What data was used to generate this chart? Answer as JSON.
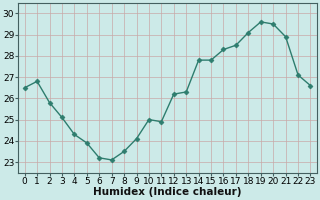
{
  "x": [
    0,
    1,
    2,
    3,
    4,
    5,
    6,
    7,
    8,
    9,
    10,
    11,
    12,
    13,
    14,
    15,
    16,
    17,
    18,
    19,
    20,
    21,
    22,
    23
  ],
  "y": [
    26.5,
    26.8,
    25.8,
    25.1,
    24.3,
    23.9,
    23.2,
    23.1,
    23.5,
    24.1,
    25.0,
    24.9,
    26.2,
    26.3,
    27.8,
    27.8,
    28.3,
    28.5,
    29.1,
    29.6,
    29.5,
    28.9,
    27.1,
    26.6
  ],
  "line_color": "#2e7d6e",
  "marker": "D",
  "marker_size": 2.5,
  "bg_color": "#cceae8",
  "grid_color": "#b8d8d5",
  "xlabel": "Humidex (Indice chaleur)",
  "ylim": [
    22.5,
    30.5
  ],
  "xlim": [
    -0.5,
    23.5
  ],
  "yticks": [
    23,
    24,
    25,
    26,
    27,
    28,
    29,
    30
  ],
  "xticks": [
    0,
    1,
    2,
    3,
    4,
    5,
    6,
    7,
    8,
    9,
    10,
    11,
    12,
    13,
    14,
    15,
    16,
    17,
    18,
    19,
    20,
    21,
    22,
    23
  ],
  "xlabel_fontsize": 7.5,
  "tick_fontsize": 6.5,
  "line_width": 1.0
}
